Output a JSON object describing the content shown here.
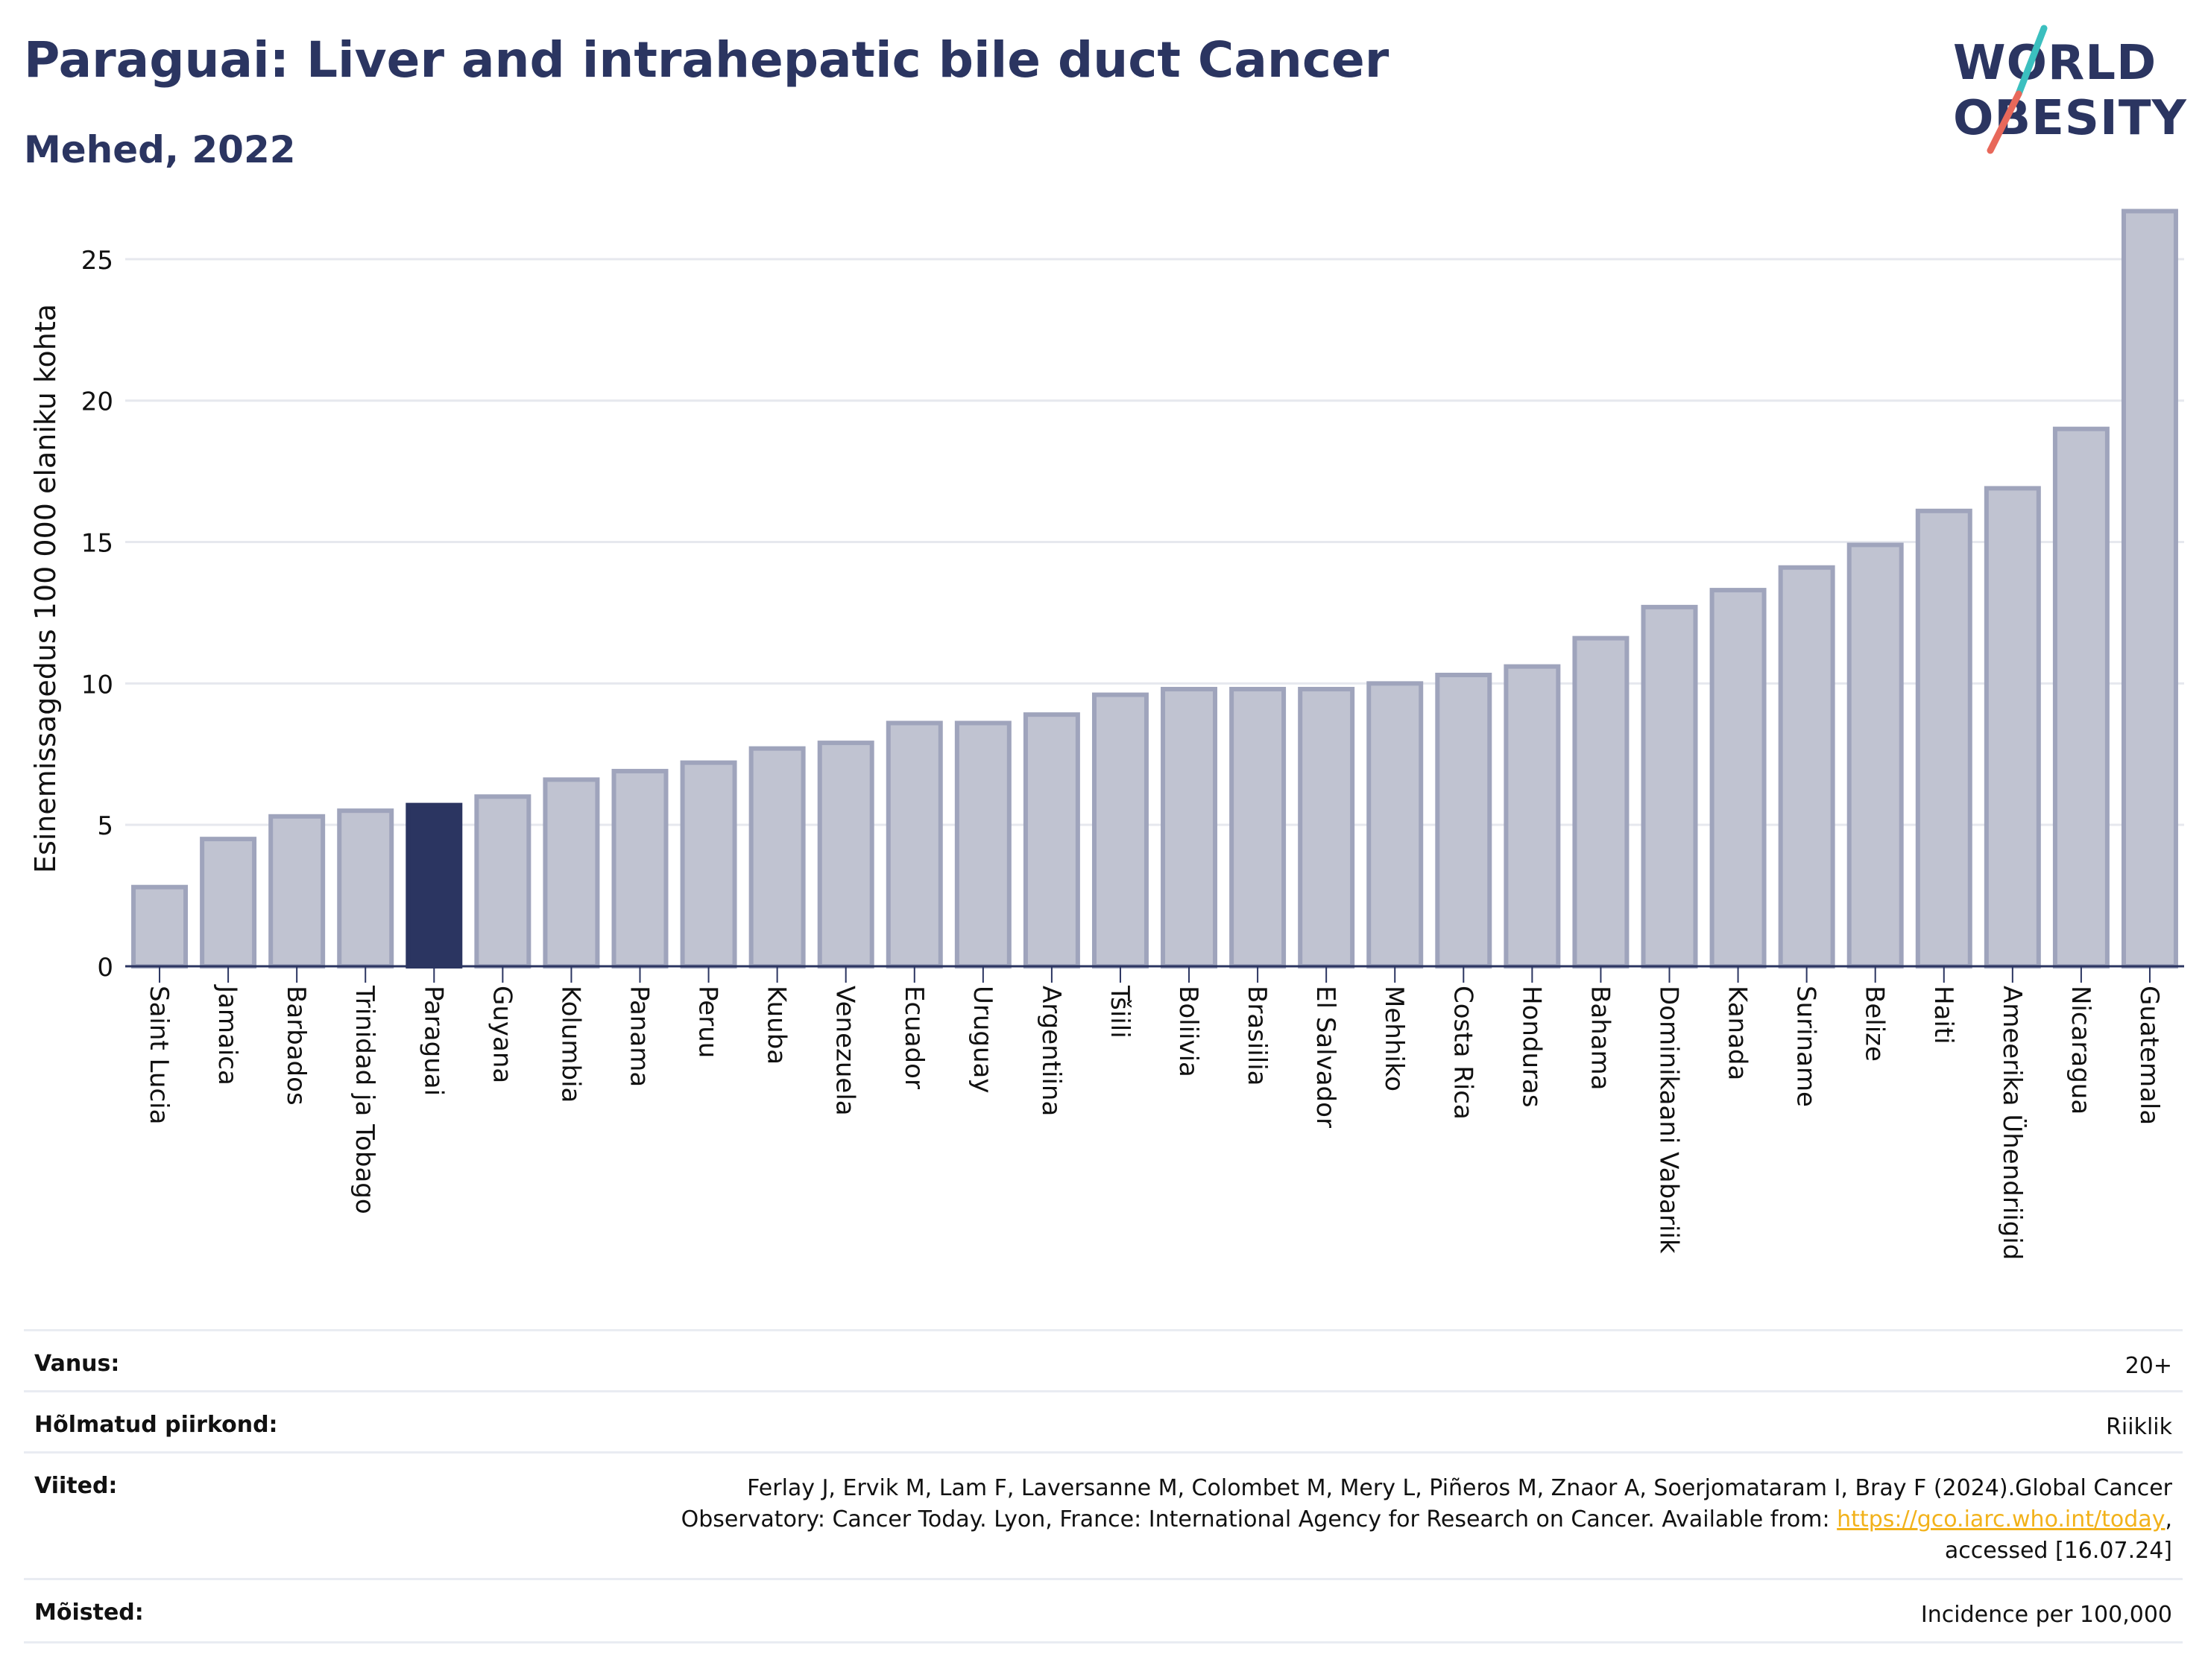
{
  "header": {
    "title": "Paraguai: Liver and intrahepatic bile duct Cancer",
    "subtitle": "Mehed, 2022"
  },
  "logo": {
    "line1": "WORLD",
    "line2": "OBESITY",
    "colors": {
      "text": "#2b3561",
      "slash_top": "#3bbfbf",
      "slash_bottom": "#e8685a"
    }
  },
  "chart_data": {
    "type": "bar",
    "ylabel": "Esinemissagedus 100 000 elaniku kohta",
    "ylim": [
      0,
      27
    ],
    "yticks": [
      0,
      5,
      10,
      15,
      20,
      25
    ],
    "grid": true,
    "highlight": "Paraguai",
    "colors": {
      "bar": "#c0c3d1",
      "bar_border": "#9fa4bc",
      "highlight": "#2b3561",
      "grid": "#e6e8ee",
      "axis": "#2b3561"
    },
    "categories": [
      "Saint Lucia",
      "Jamaica",
      "Barbados",
      "Trinidad ja Tobago",
      "Paraguai",
      "Guyana",
      "Kolumbia",
      "Panama",
      "Peruu",
      "Kuuba",
      "Venezuela",
      "Ecuador",
      "Uruguay",
      "Argentiina",
      "Tšiili",
      "Boliivia",
      "Brasiilia",
      "El Salvador",
      "Mehhiko",
      "Costa Rica",
      "Honduras",
      "Bahama",
      "Dominikaani Vabariik",
      "Kanada",
      "Suriname",
      "Belize",
      "Haiti",
      "Ameerika Ühendriigid",
      "Nicaragua",
      "Guatemala"
    ],
    "values": [
      2.8,
      4.5,
      5.3,
      5.5,
      5.7,
      6.0,
      6.6,
      6.9,
      7.2,
      7.7,
      7.9,
      8.6,
      8.6,
      8.9,
      9.6,
      9.8,
      9.8,
      9.8,
      10.0,
      10.3,
      10.6,
      11.6,
      12.7,
      13.3,
      14.1,
      14.9,
      16.1,
      16.9,
      19.0,
      26.7
    ]
  },
  "info": {
    "age": {
      "label": "Vanus:",
      "value": "20+"
    },
    "region": {
      "label": "Hõlmatud piirkond:",
      "value": "Riiklik"
    },
    "references": {
      "label": "Viited:",
      "line1": "Ferlay J, Ervik M, Lam F, Laversanne M, Colombet M, Mery L, Piñeros M, Znaor A, Soerjomataram I, Bray F (2024).Global Cancer",
      "line2_pre": "Observatory: Cancer Today. Lyon, France: International Agency for Research on Cancer. Available from: ",
      "link": "https://gco.iarc.who.int/today",
      "line2_post": ",",
      "line3": "accessed [16.07.24]"
    },
    "definitions": {
      "label": "Mõisted:",
      "value": "Incidence per 100,000"
    }
  }
}
